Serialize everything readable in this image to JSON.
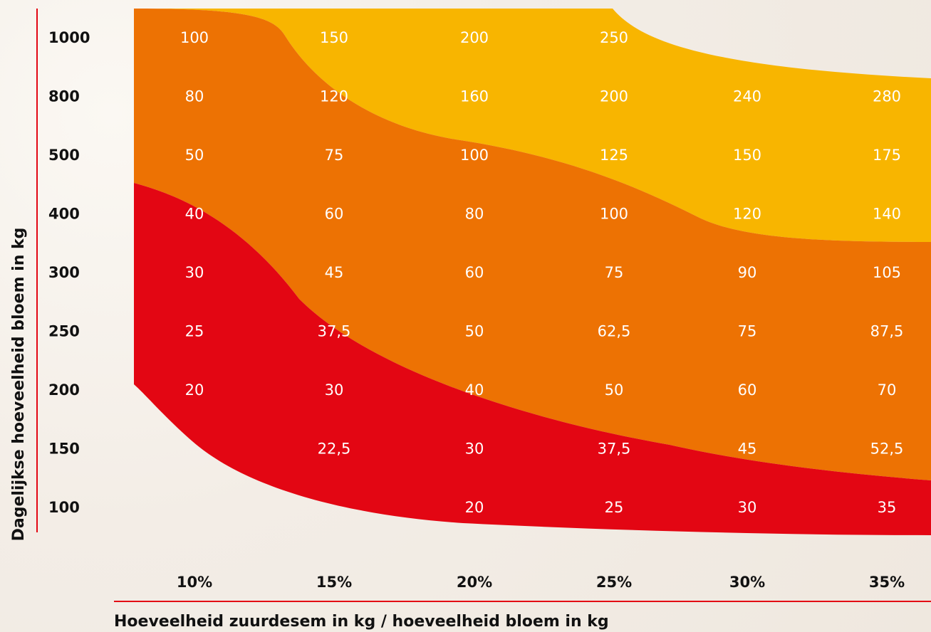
{
  "chart_data": {
    "type": "table",
    "xlabel": "Hoeveelheid zuurdesem in kg / hoeveelheid bloem in kg",
    "ylabel": "Dagelijkse hoeveelheid bloem in kg",
    "x_categories": [
      "10%",
      "15%",
      "20%",
      "25%",
      "30%",
      "35%"
    ],
    "y_categories": [
      "1000",
      "800",
      "500",
      "400",
      "300",
      "250",
      "200",
      "150",
      "100"
    ],
    "cells": [
      [
        "100",
        "150",
        "200",
        "250",
        "",
        ""
      ],
      [
        "80",
        "120",
        "160",
        "200",
        "240",
        "280"
      ],
      [
        "50",
        "75",
        "100",
        "125",
        "150",
        "175"
      ],
      [
        "40",
        "60",
        "80",
        "100",
        "120",
        "140"
      ],
      [
        "30",
        "45",
        "60",
        "75",
        "90",
        "105"
      ],
      [
        "25",
        "37,5",
        "50",
        "62,5",
        "75",
        "87,5"
      ],
      [
        "20",
        "30",
        "40",
        "50",
        "60",
        "70"
      ],
      [
        "",
        "22,5",
        "30",
        "37,5",
        "45",
        "52,5"
      ],
      [
        "",
        "",
        "20",
        "25",
        "30",
        "35"
      ]
    ],
    "bands": [
      {
        "color": "#f8b500"
      },
      {
        "color": "#ed7203"
      },
      {
        "color": "#e30613"
      }
    ],
    "colors": {
      "axis_line": "#e30613",
      "cell_text": "#ffffff",
      "label_text": "#111111"
    }
  }
}
